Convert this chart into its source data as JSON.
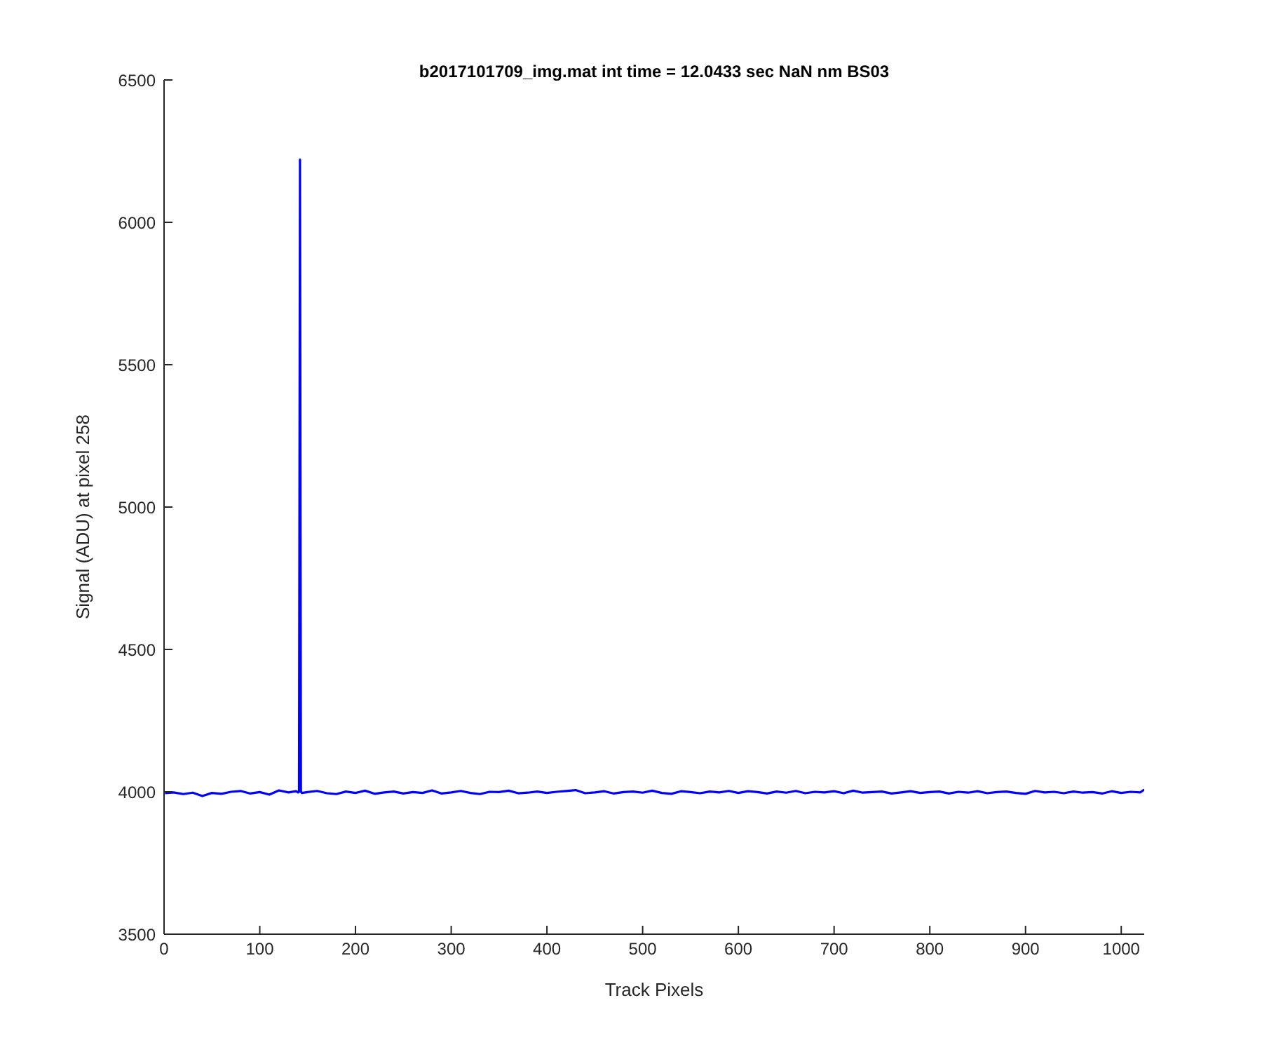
{
  "chart_data": {
    "type": "line",
    "title": "b2017101709_img.mat int time = 12.0433 sec  NaN nm BS03",
    "xlabel": "Track Pixels",
    "ylabel": "Signal (ADU) at pixel 258",
    "x": [
      1,
      10,
      20,
      30,
      40,
      50,
      60,
      70,
      80,
      90,
      100,
      110,
      120,
      130,
      138,
      140,
      141,
      142,
      143,
      144,
      150,
      160,
      170,
      180,
      190,
      200,
      210,
      220,
      230,
      240,
      250,
      260,
      270,
      280,
      290,
      300,
      310,
      320,
      330,
      340,
      350,
      360,
      370,
      380,
      390,
      400,
      410,
      420,
      430,
      440,
      450,
      460,
      470,
      480,
      490,
      500,
      510,
      520,
      530,
      540,
      550,
      560,
      570,
      580,
      590,
      600,
      610,
      620,
      630,
      640,
      650,
      660,
      670,
      680,
      690,
      700,
      710,
      720,
      730,
      740,
      750,
      760,
      770,
      780,
      790,
      800,
      810,
      820,
      830,
      840,
      850,
      860,
      870,
      880,
      890,
      900,
      910,
      920,
      930,
      940,
      950,
      960,
      970,
      980,
      990,
      1000,
      1010,
      1020,
      1024
    ],
    "series": [
      {
        "color": "#0000ff",
        "values": [
          3995,
          3998,
          3992,
          3997,
          3985,
          3996,
          3993,
          4000,
          4003,
          3994,
          3999,
          3990,
          4005,
          3998,
          4002,
          3998,
          4000,
          6220,
          4000,
          3996,
          3999,
          4003,
          3995,
          3992,
          4001,
          3996,
          4004,
          3993,
          3998,
          4001,
          3994,
          3999,
          3996,
          4005,
          3994,
          3998,
          4003,
          3996,
          3992,
          4000,
          3999,
          4004,
          3995,
          3997,
          4001,
          3996,
          4000,
          4003,
          4006,
          3995,
          3998,
          4002,
          3994,
          3999,
          4001,
          3997,
          4004,
          3996,
          3993,
          4002,
          3999,
          3995,
          4001,
          3998,
          4003,
          3996,
          4002,
          3999,
          3994,
          4001,
          3997,
          4003,
          3995,
          4000,
          3998,
          4002,
          3995,
          4004,
          3997,
          3999,
          4001,
          3994,
          3998,
          4002,
          3996,
          3999,
          4001,
          3994,
          4000,
          3997,
          4002,
          3995,
          3999,
          4001,
          3996,
          3993,
          4003,
          3998,
          4000,
          3995,
          4001,
          3997,
          3999,
          3994,
          4002,
          3996,
          4000,
          3998,
          4008
        ]
      }
    ],
    "xlim": [
      0,
      1024
    ],
    "xticks": [
      0,
      100,
      200,
      300,
      400,
      500,
      600,
      700,
      800,
      900,
      1000
    ],
    "ylim": [
      3500,
      6500
    ],
    "yticks": [
      3500,
      4000,
      4500,
      5000,
      5500,
      6000,
      6500
    ],
    "grid": false,
    "legend": false,
    "marker": "none",
    "line_style": "solid"
  }
}
